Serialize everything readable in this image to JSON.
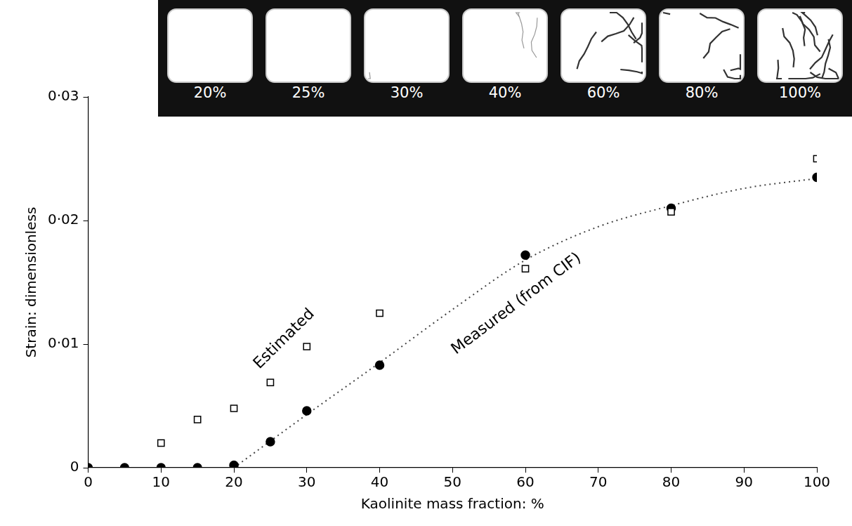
{
  "chart_data": {
    "type": "scatter",
    "x_label": "Kaolinite mass fraction: %",
    "y_label": "Strain: dimensionless",
    "xlim": [
      0,
      100
    ],
    "xticks": [
      0,
      10,
      20,
      30,
      40,
      50,
      60,
      70,
      80,
      90,
      100
    ],
    "ylim": [
      0,
      0.03
    ],
    "yticks": [
      0,
      {
        "value": 0.01,
        "label": "0·01"
      },
      {
        "value": 0.02,
        "label": "0·02"
      },
      {
        "value": 0.03,
        "label": "0·03"
      }
    ],
    "grid": false,
    "inset_labels": [
      "20%",
      "25%",
      "30%",
      "40%",
      "60%",
      "80%",
      "100%"
    ],
    "series": [
      {
        "name": "Estimated",
        "color": "#000000",
        "marker": "open_square",
        "line_style": "none",
        "x": [
          10,
          15,
          20,
          25,
          30,
          40,
          60,
          80,
          100
        ],
        "values": [
          0.002,
          0.0039,
          0.0048,
          0.0069,
          0.0098,
          0.0125,
          0.0161,
          0.0207,
          0.025
        ]
      },
      {
        "name": "Measured (from CIF)",
        "color": "#000000",
        "marker": "circle",
        "line_style": "none",
        "x": [
          0,
          5,
          10,
          15,
          20,
          25,
          30,
          40,
          60,
          80,
          100
        ],
        "values": [
          0,
          0,
          0,
          0,
          0.0002,
          0.0021,
          0.0046,
          0.0083,
          0.0172,
          0.021,
          0.0235
        ]
      },
      {
        "type": "line",
        "color": "#444444",
        "marker": "none",
        "line_style": "dotted",
        "x": [
          20,
          30,
          40,
          50,
          60,
          70,
          80,
          90,
          100
        ],
        "values": [
          0,
          0.0043,
          0.0085,
          0.0128,
          0.0168,
          0.0195,
          0.0212,
          0.0226,
          0.0234
        ]
      }
    ]
  }
}
